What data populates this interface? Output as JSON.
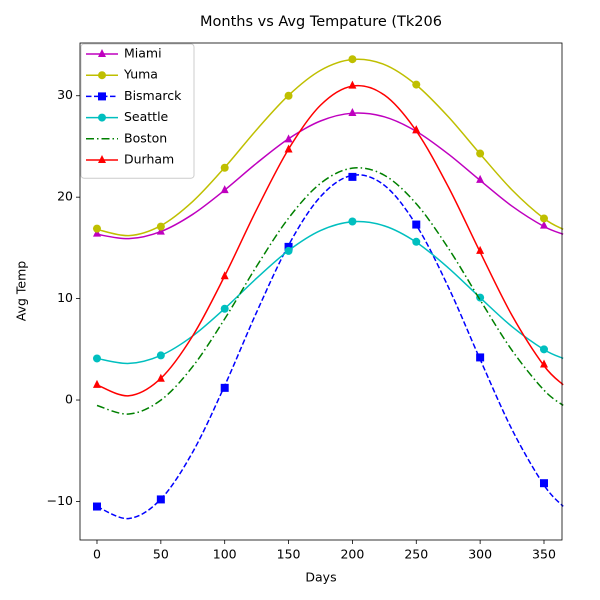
{
  "chart_data": {
    "type": "line",
    "title": "Months vs Avg Tempature (Tk206",
    "xlabel": "Days",
    "ylabel": "Avg Temp",
    "x": [
      0,
      50,
      100,
      150,
      200,
      250,
      300,
      350
    ],
    "x_fit": [
      0,
      25,
      50,
      75,
      100,
      125,
      150,
      175,
      200,
      225,
      250,
      275,
      300,
      325,
      350,
      365
    ],
    "xlim": [
      -13.3,
      364.1
    ],
    "ylim": [
      -13.8,
      35.2
    ],
    "xticks": [
      0,
      50,
      100,
      150,
      200,
      250,
      300,
      350
    ],
    "yticks": [
      {
        "value": -10,
        "label": "−10"
      },
      0,
      10,
      20,
      30
    ],
    "legend": "upper left",
    "grid": false,
    "series": [
      {
        "name": "Miami",
        "color": "#bf00bf",
        "marker": "triangle",
        "linestyle": "solid",
        "values": [
          16.4,
          16.6,
          20.7,
          25.7,
          28.3,
          26.6,
          21.7,
          17.2
        ],
        "fit": [
          16.34,
          15.91,
          16.61,
          18.31,
          20.7,
          23.35,
          25.76,
          27.51,
          28.28,
          27.92,
          26.49,
          24.26,
          21.65,
          19.11,
          17.11,
          16.35
        ]
      },
      {
        "name": "Yuma",
        "color": "#bfbf00",
        "marker": "circle",
        "linestyle": "solid",
        "values": [
          16.9,
          17.1,
          22.9,
          30.0,
          33.6,
          31.1,
          24.3,
          17.9
        ],
        "fit": [
          16.82,
          16.21,
          17.19,
          19.58,
          22.93,
          26.65,
          30.04,
          32.5,
          33.57,
          33.07,
          31.06,
          27.94,
          24.26,
          20.71,
          17.9,
          16.83
        ]
      },
      {
        "name": "Bismarck",
        "color": "#0000ff",
        "marker": "square",
        "linestyle": "dashed",
        "values": [
          -10.5,
          -9.8,
          1.2,
          15.1,
          22.0,
          17.3,
          4.2,
          -8.2
        ],
        "fit": [
          -10.5,
          -11.68,
          -9.77,
          -5.12,
          1.42,
          8.66,
          15.27,
          20.05,
          22.15,
          21.17,
          17.25,
          11.17,
          4.01,
          -2.92,
          -8.39,
          -10.48
        ]
      },
      {
        "name": "Seattle",
        "color": "#00bfbf",
        "marker": "circle",
        "linestyle": "solid",
        "values": [
          4.1,
          4.4,
          9.0,
          14.7,
          17.6,
          15.6,
          10.1,
          5.0
        ],
        "fit": [
          4.1,
          3.61,
          4.4,
          6.32,
          9.02,
          12.01,
          14.74,
          16.71,
          17.58,
          17.17,
          15.56,
          13.04,
          10.09,
          7.23,
          4.97,
          4.1
        ]
      },
      {
        "name": "Boston",
        "color": "#008000",
        "marker": "none",
        "linestyle": "dashdot",
        "fit": [
          -0.54,
          -1.38,
          -0.01,
          3.31,
          8.0,
          13.19,
          17.93,
          21.36,
          22.86,
          22.16,
          19.35,
          14.99,
          9.86,
          4.89,
          0.97,
          -0.53
        ]
      },
      {
        "name": "Durham",
        "color": "#ff0000",
        "marker": "triangle",
        "linestyle": "solid",
        "values": [
          1.5,
          2.1,
          12.2,
          24.7,
          31.0,
          26.6,
          14.7,
          3.5
        ],
        "fit": [
          1.49,
          0.42,
          2.14,
          6.34,
          12.24,
          18.78,
          24.74,
          29.06,
          30.95,
          30.07,
          26.53,
          21.04,
          14.58,
          8.33,
          3.38,
          1.5
        ]
      }
    ]
  }
}
